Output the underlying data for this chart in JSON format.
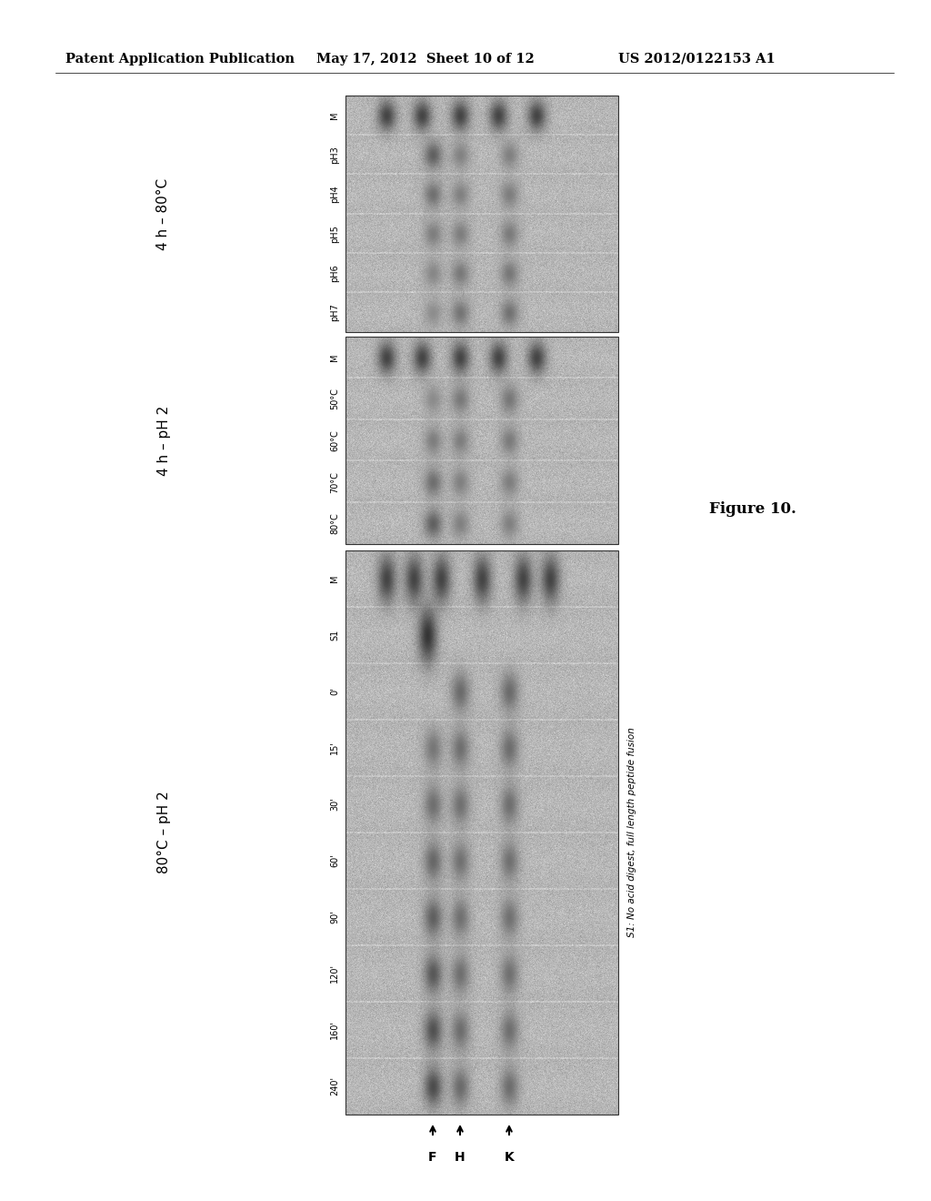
{
  "header_left": "Patent Application Publication",
  "header_mid": "May 17, 2012  Sheet 10 of 12",
  "header_right": "US 2012/0122153 A1",
  "header_fontsize": 10.5,
  "figure_label": "Figure 10.",
  "figure_label_fontsize": 12,
  "bg_color": "#ffffff",
  "panel1_title": "80°C – pH 2",
  "panel1_lanes": [
    "M",
    "S1",
    "0'",
    "15'",
    "30'",
    "60'",
    "90'",
    "120'",
    "160'",
    "240'"
  ],
  "panel2_title": "4 h – pH 2",
  "panel2_lanes": [
    "50°C",
    "60°C",
    "70°C",
    "80°C"
  ],
  "panel2_prefix_lane": "M",
  "panel3_title": "4 h – 80°C",
  "panel3_lanes": [
    "pH3",
    "pH4",
    "pH5",
    "pH6",
    "pH7"
  ],
  "panel3_prefix_lane": "M",
  "arrow_labels": [
    "F",
    "H",
    "K"
  ],
  "footnote": "S1: No acid digest, full length peptide fusion",
  "gel_gray": 0.72,
  "gel_gray_light": 0.85,
  "gel_gray_dark": 0.55,
  "band_dark": 0.3
}
